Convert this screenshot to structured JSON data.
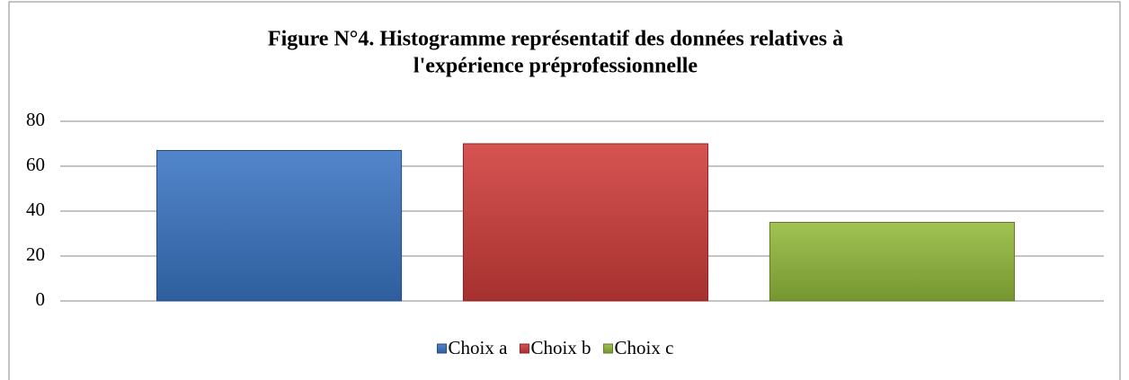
{
  "chart_data": {
    "type": "bar",
    "title": [
      "Figure N°4. Histogramme représentatif des données relatives à",
      "l'expérience préprofessionnelle"
    ],
    "categories": [
      null
    ],
    "series": [
      {
        "name": "Choix a",
        "color": "#3a75c4",
        "values": [
          67
        ]
      },
      {
        "name": "Choix b",
        "color": "#d03d3a",
        "values": [
          70
        ]
      },
      {
        "name": "Choix c",
        "color": "#93bb3c",
        "values": [
          35
        ]
      }
    ],
    "ylim": [
      0,
      80
    ],
    "yticks": [
      0,
      20,
      40,
      60,
      80
    ],
    "grid": true,
    "legend": "bottom"
  }
}
